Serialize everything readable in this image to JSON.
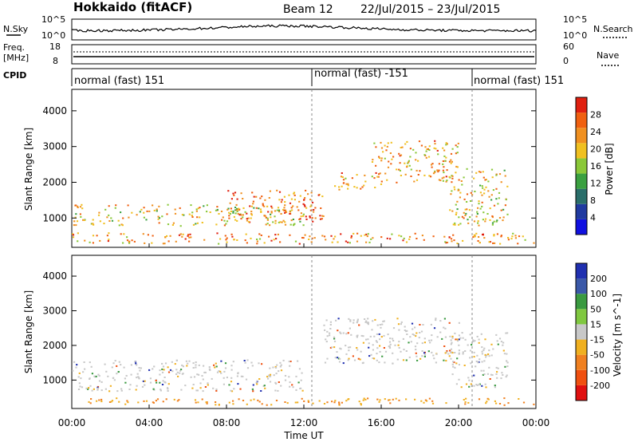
{
  "header": {
    "station": "Hokkaido (fitACF)",
    "beam": "Beam 12",
    "date_range": "22/Jul/2015 – 23/Jul/2015"
  },
  "noise_panel": {
    "left_label": "N.Sky",
    "right_label": "N.Search",
    "left_ticks": [
      "10^5",
      "10^0"
    ],
    "right_ticks": [
      "10^5",
      "10^0"
    ]
  },
  "freq_panel": {
    "left_label_1": "Freq.",
    "left_label_2": "[MHz]",
    "right_label": "Nave",
    "left_ticks": [
      "18",
      "8"
    ],
    "right_ticks": [
      "60",
      "0"
    ]
  },
  "cpid": {
    "label": "CPID",
    "segments": [
      "normal (fast) 151",
      "normal (fast) -151",
      "normal (fast) 151"
    ]
  },
  "time_axis": {
    "ticks": [
      "00:00",
      "04:00",
      "08:00",
      "12:00",
      "16:00",
      "20:00",
      "00:00"
    ],
    "label": "Time UT"
  },
  "colors": {
    "power_scale": [
      "#1010e0",
      "#203aa0",
      "#2a6e6a",
      "#3aa040",
      "#8ac838",
      "#f0c020",
      "#f09020",
      "#f06010",
      "#e02010"
    ],
    "velocity_scale": [
      "#e01010",
      "#f05010",
      "#f08020",
      "#f0b020",
      "#c8c8c8",
      "#80c840",
      "#3a9a40",
      "#3a58a8",
      "#2030b0"
    ]
  },
  "chart_data": [
    {
      "type": "heatmap",
      "title": "",
      "ylabel": "Slant Range [km]",
      "xlabel": "Time UT",
      "y_ticks": [
        1000,
        2000,
        3000,
        4000
      ],
      "colorbar": {
        "label": "Power [dB]",
        "ticks": [
          4,
          8,
          12,
          16,
          20,
          24,
          28
        ]
      },
      "features": [
        {
          "t_start": 0,
          "t_end": 24,
          "range_km": [
            300,
            600
          ],
          "power_db": 26
        },
        {
          "t_start": 0,
          "t_end": 12,
          "range_km": [
            800,
            1400
          ],
          "power_db": 22
        },
        {
          "t_start": 8,
          "t_end": 13,
          "range_km": [
            900,
            1800
          ],
          "power_db": 28
        },
        {
          "t_start": 13.5,
          "t_end": 16,
          "range_km": [
            1800,
            2300
          ],
          "power_db": 26
        },
        {
          "t_start": 15.5,
          "t_end": 20,
          "range_km": [
            2000,
            3200
          ],
          "power_db": 24
        },
        {
          "t_start": 19.5,
          "t_end": 22.5,
          "range_km": [
            800,
            2400
          ],
          "power_db": 22
        }
      ]
    },
    {
      "type": "heatmap",
      "title": "",
      "ylabel": "Slant Range [km]",
      "xlabel": "Time UT",
      "y_ticks": [
        1000,
        2000,
        3000,
        4000
      ],
      "colorbar": {
        "label": "Velocity [m s^-1]",
        "ticks": [
          -200,
          -100,
          -50,
          -15,
          15,
          50,
          100,
          200
        ]
      },
      "features": [
        {
          "t_start": 0,
          "t_end": 24,
          "range_km": [
            300,
            500
          ],
          "velocity": -50
        },
        {
          "t_start": 0,
          "t_end": 12,
          "range_km": [
            700,
            1600
          ],
          "velocity": 0
        },
        {
          "t_start": 13,
          "t_end": 20,
          "range_km": [
            1500,
            2800
          ],
          "velocity": 0
        },
        {
          "t_start": 19.5,
          "t_end": 22.5,
          "range_km": [
            800,
            2400
          ],
          "velocity": 0
        }
      ]
    }
  ]
}
